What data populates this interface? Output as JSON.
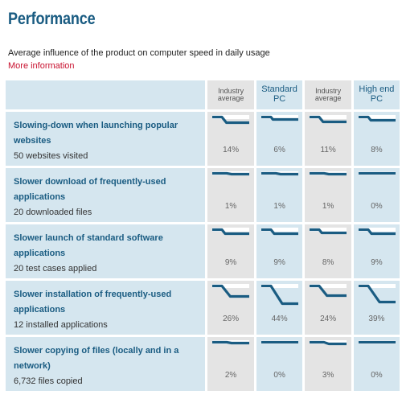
{
  "page": {
    "title": "Performance",
    "subtitle": "Average influence of the product on computer speed in daily usage",
    "more_info": "More information"
  },
  "columns": [
    {
      "label_lines": [
        "Industry",
        "average"
      ],
      "style": "gray"
    },
    {
      "label_lines": [
        "Standard",
        "PC"
      ],
      "style": "blue"
    },
    {
      "label_lines": [
        "Industry",
        "average"
      ],
      "style": "gray"
    },
    {
      "label_lines": [
        "High end",
        "PC"
      ],
      "style": "blue"
    }
  ],
  "rows": [
    {
      "title": "Slowing-down when launching popular websites",
      "subtitle": "50 websites visited",
      "values": [
        "14%",
        "6%",
        "11%",
        "8%"
      ],
      "slowdown": [
        0.14,
        0.06,
        0.11,
        0.08
      ]
    },
    {
      "title": "Slower download of frequently-used applications",
      "subtitle": "20 downloaded files",
      "values": [
        "1%",
        "1%",
        "1%",
        "0%"
      ],
      "slowdown": [
        0.01,
        0.01,
        0.01,
        0.0
      ]
    },
    {
      "title": "Slower launch of standard software applications",
      "subtitle": "20 test cases applied",
      "values": [
        "9%",
        "9%",
        "8%",
        "9%"
      ],
      "slowdown": [
        0.09,
        0.09,
        0.08,
        0.09
      ]
    },
    {
      "title": "Slower installation of frequently-used applications",
      "subtitle": "12 installed applications",
      "values": [
        "26%",
        "44%",
        "24%",
        "39%"
      ],
      "slowdown": [
        0.26,
        0.44,
        0.24,
        0.39
      ]
    },
    {
      "title": "Slower copying of files (locally and in a network)",
      "subtitle": "6,732 files copied",
      "values": [
        "2%",
        "0%",
        "3%",
        "0%"
      ],
      "slowdown": [
        0.02,
        0.0,
        0.03,
        0.0
      ]
    }
  ],
  "colors": {
    "title": "#1a5c82",
    "link": "#c8102e",
    "spark_line": "#1a5c82",
    "gray_cell": "#e4e4e4",
    "blue_cell": "#d5e6ef"
  }
}
